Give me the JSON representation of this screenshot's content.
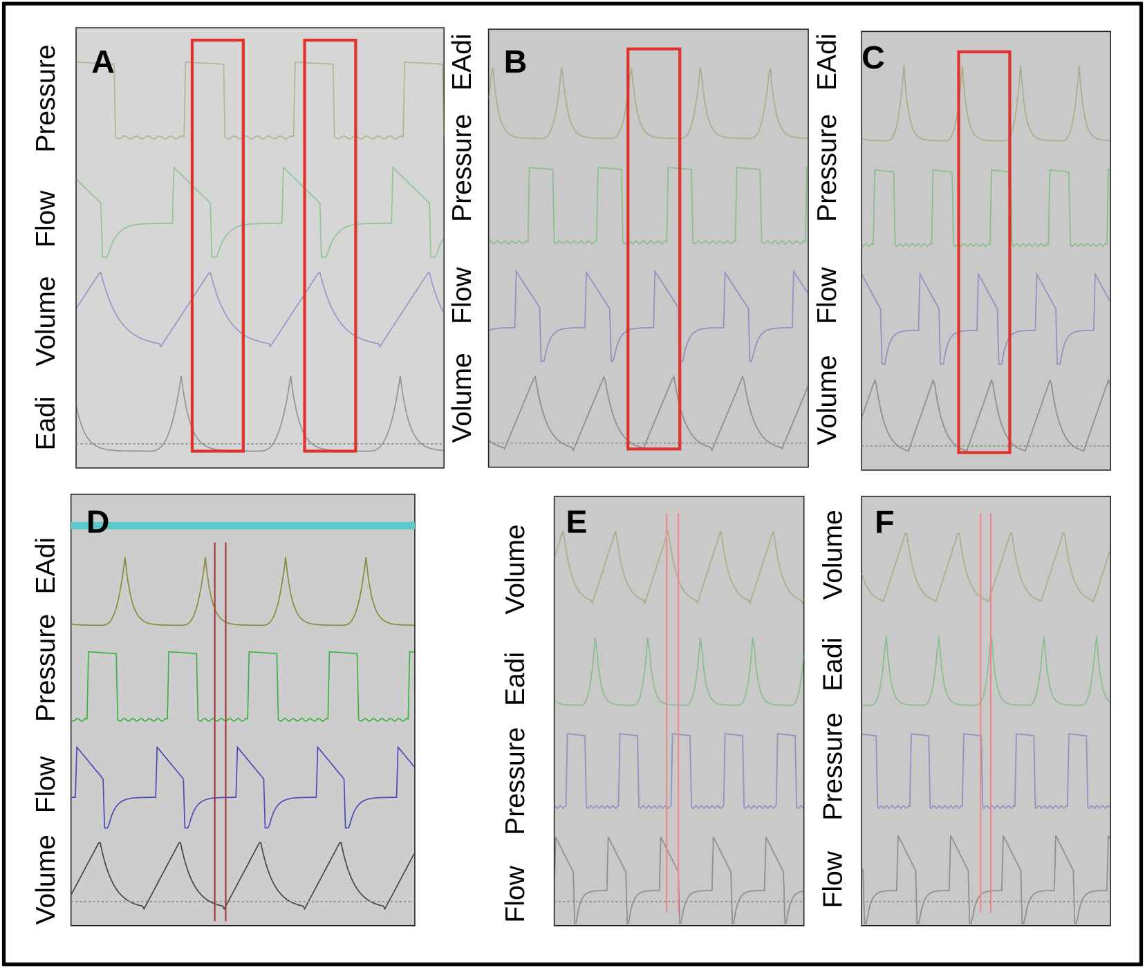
{
  "panels": [
    {
      "letter": "A",
      "labels": [
        "Pressure",
        "Flow",
        "Volume",
        "Eadi"
      ]
    },
    {
      "letter": "B",
      "labels": [
        "EAdi",
        "Pressure",
        "Flow",
        "Volume"
      ]
    },
    {
      "letter": "C",
      "labels": [
        "EAdi",
        "Pressure",
        "Flow",
        "Volume"
      ]
    },
    {
      "letter": "D",
      "labels": [
        "EAdi",
        "Pressure",
        "Flow",
        "Volume"
      ]
    },
    {
      "letter": "E",
      "labels": [
        "Volume",
        "Eadi",
        "Pressure",
        "Flow"
      ]
    },
    {
      "letter": "F",
      "labels": [
        "Volume",
        "Eadi",
        "Pressure",
        "Flow"
      ]
    }
  ]
}
